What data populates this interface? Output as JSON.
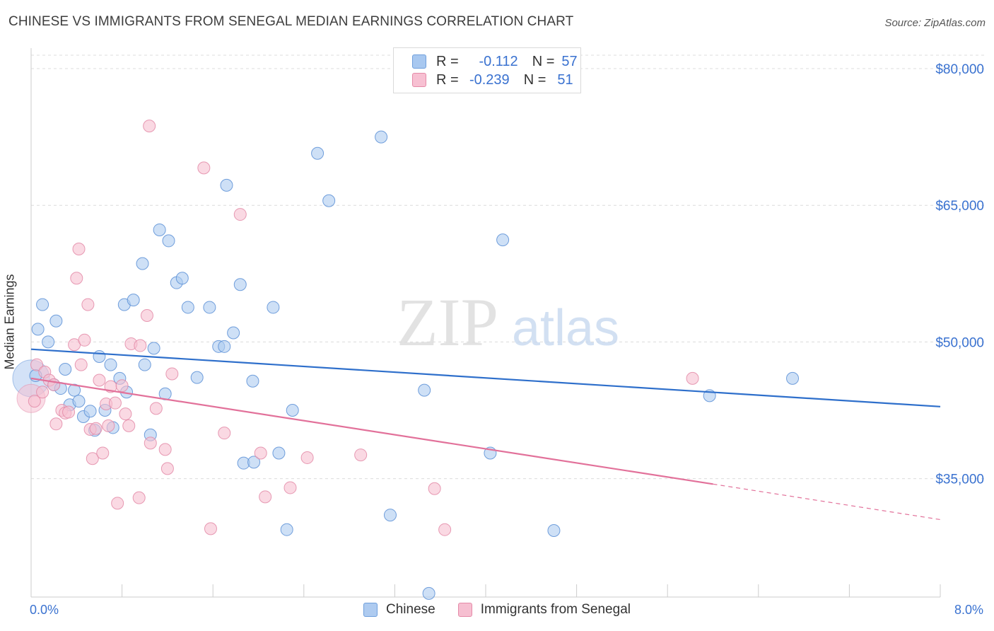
{
  "header": {
    "title": "CHINESE VS IMMIGRANTS FROM SENEGAL MEDIAN EARNINGS CORRELATION CHART",
    "source": "Source: ZipAtlas.com"
  },
  "watermark": {
    "zip": "ZIP",
    "atlas": "atlas"
  },
  "legend": {
    "rows": [
      {
        "r_label": "R =",
        "r_value": "-0.112",
        "n_label": "N =",
        "n_value": "57",
        "color": "#a8c8f0",
        "border": "#6f9fdc"
      },
      {
        "r_label": "R =",
        "r_value": "-0.239",
        "n_label": "N =",
        "n_value": "51",
        "color": "#f7c0d2",
        "border": "#e58aa8"
      }
    ]
  },
  "bottom_legend": [
    "Chinese",
    "Immigrants from Senegal"
  ],
  "colors": {
    "chinese_fill": "#aecbf0",
    "chinese_stroke": "#5b8fd6",
    "chinese_line": "#2e6fcb",
    "senegal_fill": "#f6bfd1",
    "senegal_stroke": "#e38aa7",
    "senegal_line": "#e2719a",
    "tick_label": "#3a72d0",
    "grid": "#dcdcdc"
  },
  "chart_data": {
    "type": "scatter",
    "title": "CHINESE VS IMMIGRANTS FROM SENEGAL MEDIAN EARNINGS CORRELATION CHART",
    "xlabel": "",
    "ylabel": "Median Earnings",
    "xlim": [
      0,
      8
    ],
    "ylim": [
      20000,
      81000
    ],
    "x_tick_labels": [
      "0.0%",
      "8.0%"
    ],
    "y_ticks": [
      35000,
      50000,
      65000,
      80000
    ],
    "y_tick_labels": [
      "$35,000",
      "$50,000",
      "$65,000",
      "$80,000"
    ],
    "grid": true,
    "series": [
      {
        "name": "Chinese",
        "trend": {
          "x": [
            0.0,
            8.0
          ],
          "y": [
            49200,
            42900
          ]
        },
        "points": [
          [
            0.04,
            46300
          ],
          [
            0.06,
            51400
          ],
          [
            0.1,
            54100
          ],
          [
            0.15,
            50000
          ],
          [
            0.2,
            45300
          ],
          [
            0.22,
            52300
          ],
          [
            0.26,
            44900
          ],
          [
            0.3,
            47000
          ],
          [
            0.34,
            43100
          ],
          [
            0.38,
            44700
          ],
          [
            0.42,
            43500
          ],
          [
            0.46,
            41800
          ],
          [
            0.52,
            42400
          ],
          [
            0.56,
            40300
          ],
          [
            0.6,
            48400
          ],
          [
            0.65,
            42500
          ],
          [
            0.7,
            47500
          ],
          [
            0.72,
            40600
          ],
          [
            0.78,
            46000
          ],
          [
            0.82,
            54100
          ],
          [
            0.84,
            44500
          ],
          [
            0.9,
            54600
          ],
          [
            0.98,
            58600
          ],
          [
            1.0,
            47500
          ],
          [
            1.05,
            39800
          ],
          [
            1.08,
            49300
          ],
          [
            1.13,
            62300
          ],
          [
            1.18,
            44300
          ],
          [
            1.21,
            61100
          ],
          [
            1.28,
            56500
          ],
          [
            1.33,
            57000
          ],
          [
            1.38,
            53800
          ],
          [
            1.46,
            46100
          ],
          [
            1.57,
            53800
          ],
          [
            1.65,
            49500
          ],
          [
            1.7,
            49500
          ],
          [
            1.72,
            67200
          ],
          [
            1.78,
            51000
          ],
          [
            1.84,
            56300
          ],
          [
            1.87,
            36700
          ],
          [
            1.95,
            45700
          ],
          [
            1.96,
            36800
          ],
          [
            2.13,
            53800
          ],
          [
            2.18,
            37800
          ],
          [
            2.25,
            29400
          ],
          [
            2.3,
            42500
          ],
          [
            2.52,
            70700
          ],
          [
            2.62,
            65500
          ],
          [
            3.08,
            72500
          ],
          [
            3.16,
            31000
          ],
          [
            3.46,
            44700
          ],
          [
            3.5,
            22400
          ],
          [
            4.04,
            37800
          ],
          [
            4.15,
            61200
          ],
          [
            4.6,
            29300
          ],
          [
            5.97,
            44100
          ],
          [
            6.7,
            46000
          ]
        ]
      },
      {
        "name": "Immigrants from Senegal",
        "trend": {
          "x": [
            0.0,
            6.0
          ],
          "y": [
            46000,
            34400
          ]
        },
        "trend_dashed": {
          "x": [
            6.0,
            8.0
          ],
          "y": [
            34400,
            30500
          ]
        },
        "points": [
          [
            0.03,
            43500
          ],
          [
            0.05,
            47500
          ],
          [
            0.1,
            44500
          ],
          [
            0.12,
            46700
          ],
          [
            0.16,
            45800
          ],
          [
            0.2,
            45300
          ],
          [
            0.22,
            41000
          ],
          [
            0.27,
            42500
          ],
          [
            0.3,
            42200
          ],
          [
            0.33,
            42300
          ],
          [
            0.38,
            49700
          ],
          [
            0.4,
            57000
          ],
          [
            0.42,
            60200
          ],
          [
            0.44,
            47500
          ],
          [
            0.47,
            50200
          ],
          [
            0.5,
            54100
          ],
          [
            0.52,
            40400
          ],
          [
            0.54,
            37200
          ],
          [
            0.57,
            40500
          ],
          [
            0.6,
            45800
          ],
          [
            0.63,
            37800
          ],
          [
            0.66,
            43200
          ],
          [
            0.68,
            40800
          ],
          [
            0.7,
            45100
          ],
          [
            0.74,
            43300
          ],
          [
            0.76,
            32300
          ],
          [
            0.8,
            45200
          ],
          [
            0.83,
            42100
          ],
          [
            0.86,
            40800
          ],
          [
            0.88,
            49800
          ],
          [
            0.95,
            32900
          ],
          [
            0.96,
            49600
          ],
          [
            1.02,
            52900
          ],
          [
            1.04,
            73700
          ],
          [
            1.05,
            38900
          ],
          [
            1.1,
            42700
          ],
          [
            1.18,
            38200
          ],
          [
            1.2,
            36100
          ],
          [
            1.24,
            46500
          ],
          [
            1.52,
            69100
          ],
          [
            1.58,
            29500
          ],
          [
            1.7,
            40000
          ],
          [
            1.84,
            64000
          ],
          [
            2.02,
            37800
          ],
          [
            2.06,
            33000
          ],
          [
            2.28,
            34000
          ],
          [
            2.43,
            37300
          ],
          [
            2.9,
            37600
          ],
          [
            3.55,
            33900
          ],
          [
            3.64,
            29400
          ],
          [
            5.82,
            46000
          ]
        ]
      }
    ]
  }
}
